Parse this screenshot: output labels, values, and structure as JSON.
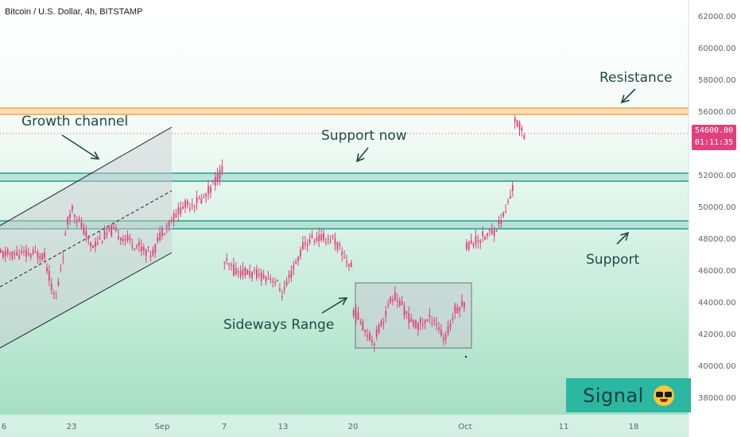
{
  "header": {
    "title": "Bitcoin / U.S. Dollar, 4h, BITSTAMP"
  },
  "price_scale": {
    "labels": [
      "62000.00",
      "60000.00",
      "58000.00",
      "56000.00",
      "54000.00",
      "52000.00",
      "50000.00",
      "48000.00",
      "46000.00",
      "44000.00",
      "42000.00",
      "40000.00",
      "38000.00"
    ],
    "current_price": "54600.00",
    "countdown": "01:11:35"
  },
  "time_scale": {
    "labels": [
      "6",
      "23",
      "Sep",
      "7",
      "13",
      "20",
      "Oct",
      "11",
      "18"
    ]
  },
  "annotations": {
    "growth_channel": "Growth channel",
    "support_now": "Support now",
    "resistance": "Resistance",
    "support": "Support",
    "sideways_range": "Sideways Range"
  },
  "signal_badge": {
    "label": "Signal",
    "icon": "sunglasses-face-icon"
  },
  "colors": {
    "candle": "#e0417d",
    "resistance_zone": "#f6a33b",
    "support_zone": "#2a9d8f",
    "annotation_text": "#1e4a45",
    "badge": "#2bb7a0"
  },
  "chart_data": {
    "type": "candlestick",
    "instrument": "Bitcoin / U.S. Dollar",
    "timeframe": "4h",
    "exchange": "BITSTAMP",
    "ylim": [
      37000,
      63000
    ],
    "x_ticks": [
      "6",
      "23",
      "Sep",
      "7",
      "13",
      "20",
      "Oct",
      "11",
      "18"
    ],
    "last_price": 54600,
    "levels": [
      {
        "label": "Resistance",
        "from": 55800,
        "to": 56200
      },
      {
        "label": "Support now",
        "from": 51600,
        "to": 52100
      },
      {
        "label": "Support",
        "from": 48600,
        "to": 49100
      }
    ],
    "ranges": [
      {
        "label": "Sideways Range",
        "from": 41100,
        "to": 45200
      }
    ],
    "approx_path": [
      {
        "date": "Aug 16",
        "price": 47000
      },
      {
        "date": "Aug 18",
        "price": 45000
      },
      {
        "date": "Aug 19",
        "price": 44000
      },
      {
        "date": "Aug 22",
        "price": 49000
      },
      {
        "date": "Aug 23",
        "price": 50000
      },
      {
        "date": "Aug 25",
        "price": 47500
      },
      {
        "date": "Aug 27",
        "price": 48500
      },
      {
        "date": "Aug 31",
        "price": 47000
      },
      {
        "date": "Sep 1",
        "price": 48500
      },
      {
        "date": "Sep 3",
        "price": 50000
      },
      {
        "date": "Sep 5",
        "price": 50500
      },
      {
        "date": "Sep 7",
        "price": 52500
      },
      {
        "date": "Sep 7",
        "price": 46500
      },
      {
        "date": "Sep 8",
        "price": 46000
      },
      {
        "date": "Sep 12",
        "price": 45500
      },
      {
        "date": "Sep 13",
        "price": 44500
      },
      {
        "date": "Sep 15",
        "price": 47500
      },
      {
        "date": "Sep 16",
        "price": 48000
      },
      {
        "date": "Sep 18",
        "price": 48000
      },
      {
        "date": "Sep 20",
        "price": 46000
      },
      {
        "date": "Sep 20",
        "price": 43500
      },
      {
        "date": "Sep 22",
        "price": 41500
      },
      {
        "date": "Sep 24",
        "price": 44500
      },
      {
        "date": "Sep 26",
        "price": 42500
      },
      {
        "date": "Sep 28",
        "price": 43000
      },
      {
        "date": "Sep 29",
        "price": 41500
      },
      {
        "date": "Sep 30",
        "price": 43500
      },
      {
        "date": "Oct 1",
        "price": 44000
      },
      {
        "date": "Oct 1",
        "price": 47500
      },
      {
        "date": "Oct 4",
        "price": 48500
      },
      {
        "date": "Oct 5",
        "price": 49500
      },
      {
        "date": "Oct 6",
        "price": 51500
      },
      {
        "date": "Oct 6",
        "price": 55500
      },
      {
        "date": "Oct 7",
        "price": 54600
      }
    ]
  }
}
